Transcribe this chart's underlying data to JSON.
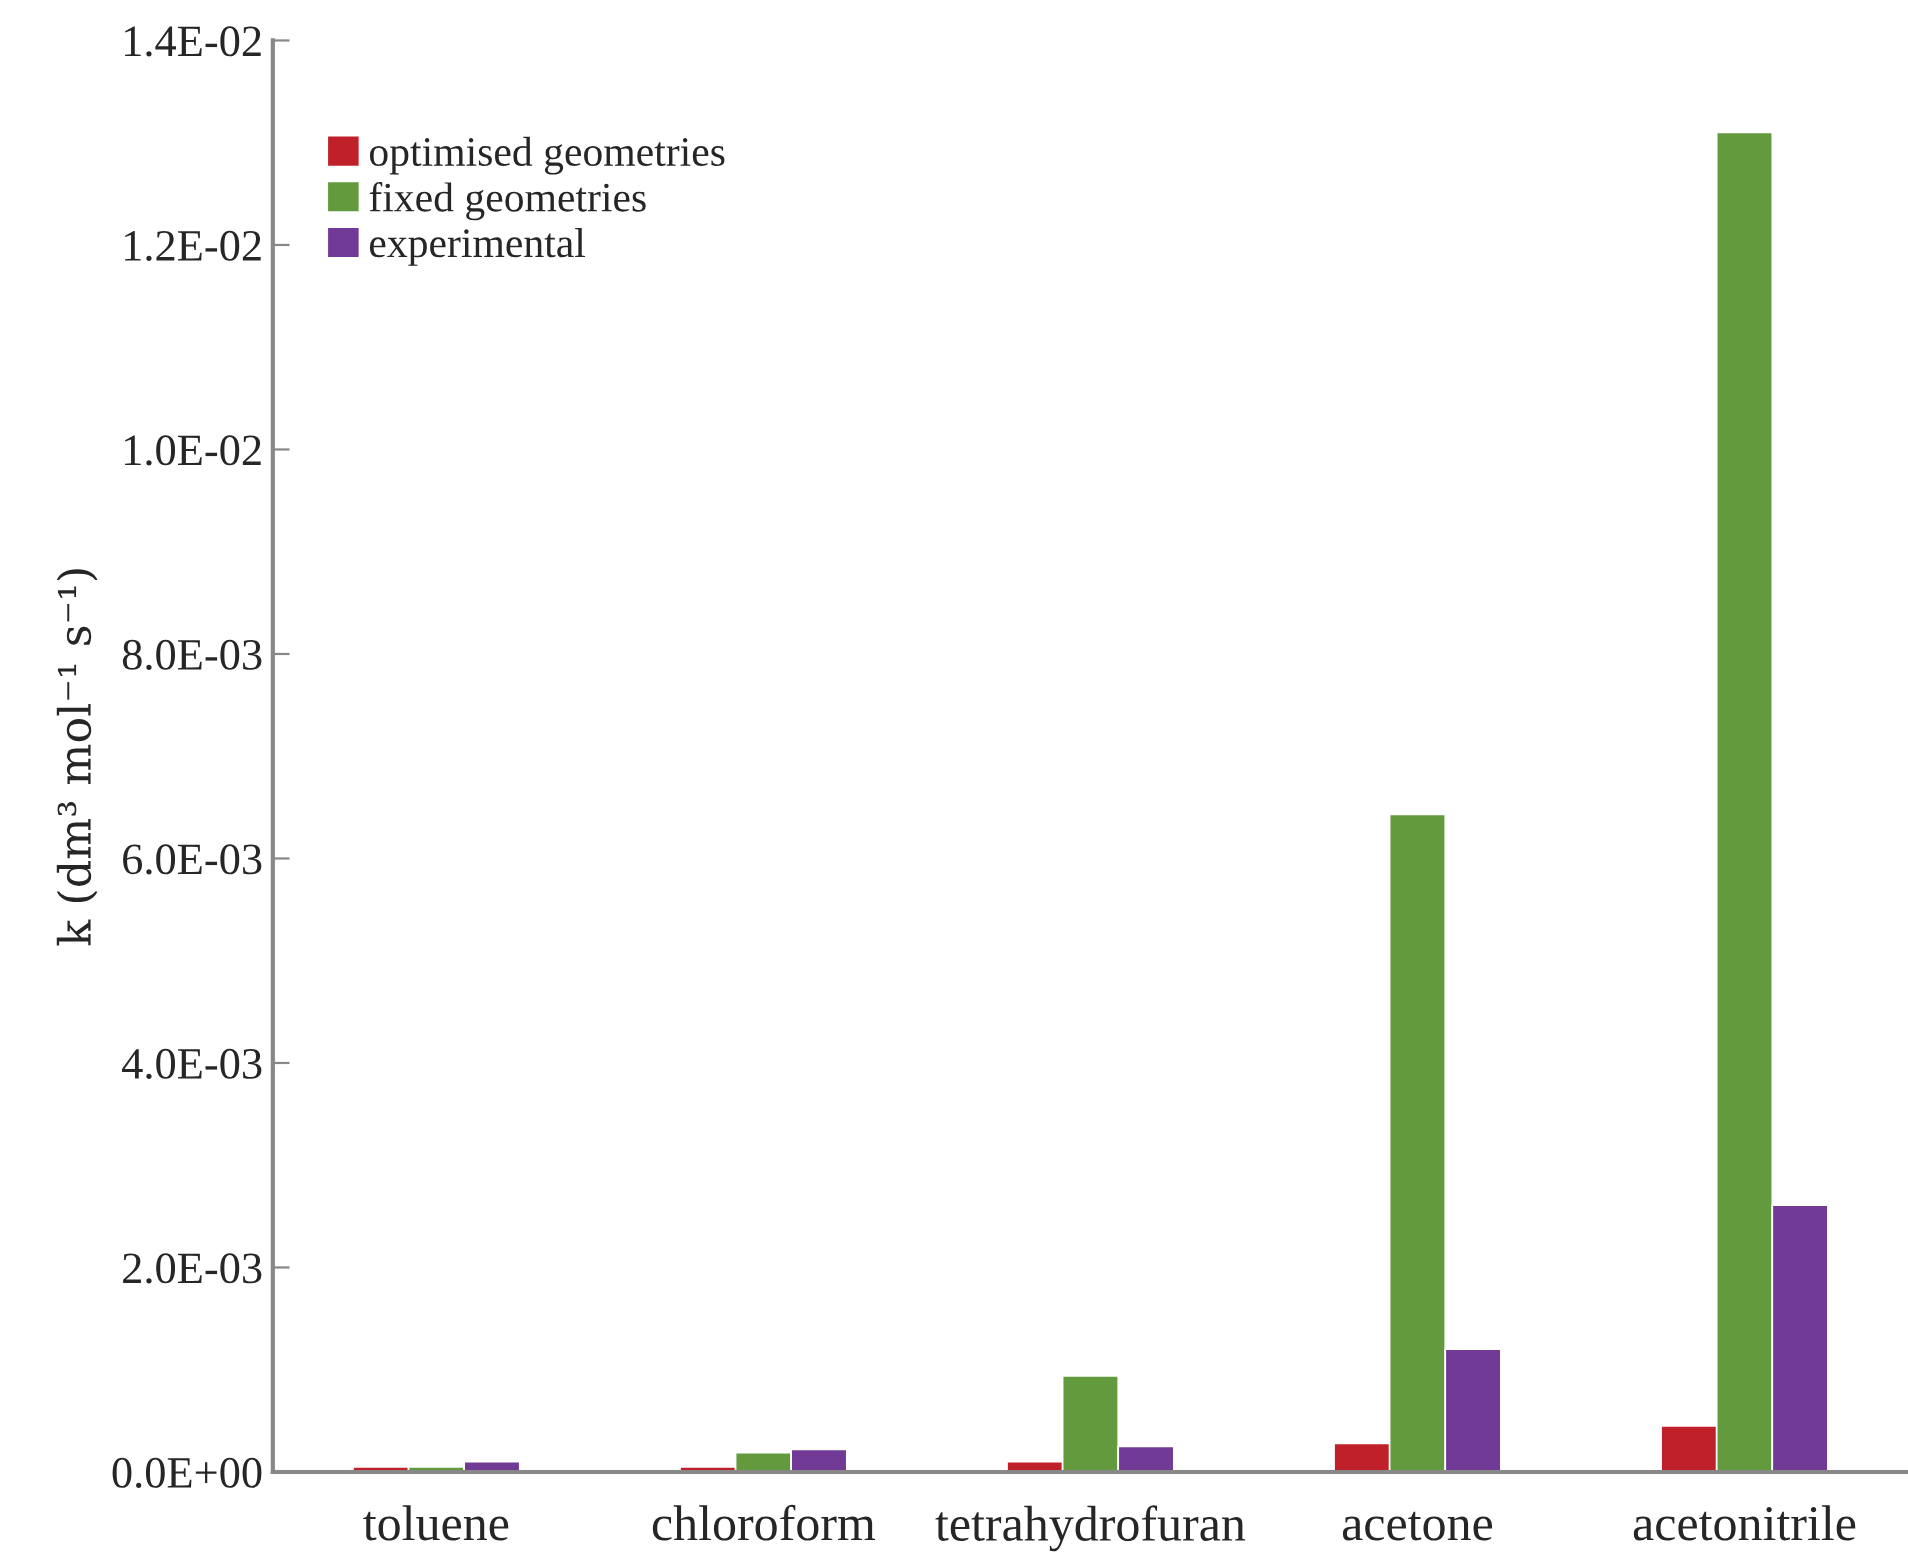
{
  "chart_data": {
    "type": "bar",
    "ylabel": "k (dm³ mol⁻¹ s⁻¹)",
    "categories": [
      "toluene",
      "chloroform",
      "tetrahydrofuran",
      "acetone",
      "acetonitrile"
    ],
    "series": [
      {
        "name": "optimised geometries",
        "color": "#c0202a",
        "values": [
          5e-05,
          5e-05,
          0.0001,
          0.00028,
          0.00045
        ]
      },
      {
        "name": "fixed geometries",
        "color": "#639a3e",
        "values": [
          5e-05,
          0.00019,
          0.00094,
          0.00643,
          0.0131
        ]
      },
      {
        "name": "experimental",
        "color": "#703a96",
        "values": [
          0.0001,
          0.00022,
          0.00025,
          0.0012,
          0.00261
        ]
      }
    ],
    "ylim": [
      0,
      0.014
    ],
    "yticks": [
      {
        "value": 0,
        "label": "0.0E+00"
      },
      {
        "value": 0.002,
        "label": "2.0E-03"
      },
      {
        "value": 0.004,
        "label": "4.0E-03"
      },
      {
        "value": 0.006,
        "label": "6.0E-03"
      },
      {
        "value": 0.008,
        "label": "8.0E-03"
      },
      {
        "value": 0.01,
        "label": "1.0E-02"
      },
      {
        "value": 0.012,
        "label": "1.2E-02"
      },
      {
        "value": 0.014,
        "label": "1.4E-02"
      }
    ],
    "grid": false,
    "legend": "top left"
  }
}
